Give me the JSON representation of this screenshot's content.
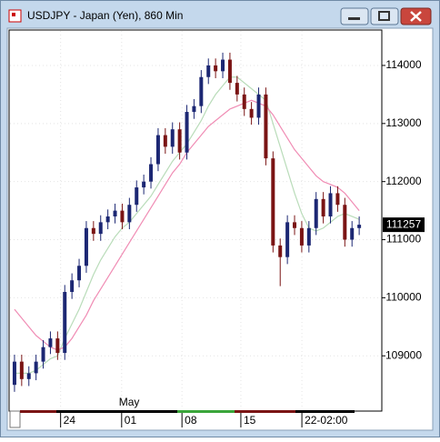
{
  "chart_data": {
    "type": "candlestick",
    "title": "USDJPY - Japan (Yen), 860 Min",
    "open": [
      108500,
      108900,
      108600,
      108700,
      108900,
      109150,
      109300,
      109050,
      110100,
      110300,
      110550,
      111200,
      111100,
      111300,
      111400,
      111500,
      111300,
      111600,
      111900,
      112000,
      112300,
      112800,
      112600,
      112900,
      112500,
      113200,
      113300,
      113800,
      114000,
      113900,
      114100,
      113700,
      113500,
      113250,
      113100,
      113500,
      112400,
      110900,
      110700,
      111300,
      111200,
      110900,
      111200,
      111700,
      111400,
      111800,
      111600,
      111000,
      111200
    ],
    "high": [
      109020,
      109020,
      108820,
      109020,
      109270,
      109420,
      109420,
      110220,
      110420,
      110670,
      111320,
      111320,
      111420,
      111520,
      111620,
      111620,
      111720,
      112020,
      112120,
      112420,
      112920,
      112920,
      113020,
      113020,
      113320,
      113420,
      113920,
      114120,
      114120,
      114220,
      114220,
      113820,
      113620,
      113370,
      113620,
      113620,
      112520,
      111020,
      111420,
      111420,
      111320,
      111320,
      111820,
      111820,
      111920,
      111920,
      111720,
      111320,
      111400
    ],
    "low": [
      108380,
      108480,
      108480,
      108580,
      108780,
      109030,
      108930,
      108930,
      109980,
      110180,
      110430,
      110980,
      110980,
      111180,
      111280,
      111180,
      111180,
      111480,
      111780,
      111880,
      112180,
      112480,
      112480,
      112380,
      112380,
      113080,
      113180,
      113680,
      113780,
      113780,
      113580,
      113380,
      113130,
      112980,
      112980,
      112280,
      110780,
      110200,
      110580,
      111080,
      110780,
      110780,
      111080,
      111280,
      111280,
      111480,
      110880,
      110880,
      111080
    ],
    "close": [
      108900,
      108600,
      108700,
      108900,
      109150,
      109300,
      109050,
      110100,
      110300,
      110550,
      111200,
      111100,
      111300,
      111400,
      111500,
      111300,
      111600,
      111900,
      112000,
      112300,
      112800,
      112600,
      112900,
      112500,
      113200,
      113300,
      113800,
      114000,
      113900,
      114100,
      113700,
      113500,
      113250,
      113100,
      113500,
      112400,
      110900,
      110700,
      111300,
      111200,
      110900,
      111200,
      111700,
      111400,
      111800,
      111600,
      111000,
      111200,
      111257
    ],
    "up_color": "#1c2773",
    "down_color": "#7a1414",
    "moving_averages": [
      {
        "color": "#b9dcb9",
        "values": [
          108700,
          108700,
          108700,
          108750,
          108850,
          108950,
          109000,
          109300,
          109550,
          109800,
          110100,
          110400,
          110650,
          110850,
          111050,
          111200,
          111300,
          111450,
          111600,
          111750,
          111950,
          112150,
          112350,
          112500,
          112650,
          112850,
          113050,
          113300,
          113500,
          113650,
          113800,
          113800,
          113700,
          113600,
          113500,
          113400,
          113000,
          112600,
          112200,
          111800,
          111450,
          111200,
          111150,
          111200,
          111300,
          111400,
          111450,
          111400,
          111350
        ]
      },
      {
        "color": "#f08cb4",
        "values": [
          109800,
          109650,
          109500,
          109350,
          109250,
          109150,
          109100,
          109150,
          109300,
          109500,
          109700,
          109950,
          110150,
          110350,
          110550,
          110750,
          110950,
          111150,
          111350,
          111550,
          111750,
          111950,
          112150,
          112300,
          112500,
          112650,
          112800,
          112950,
          113050,
          113150,
          113250,
          113300,
          113350,
          113400,
          113350,
          113300,
          113150,
          112950,
          112750,
          112550,
          112400,
          112250,
          112100,
          112000,
          111950,
          111900,
          111800,
          111650,
          111500
        ]
      }
    ],
    "xlim": [
      -0.5,
      51.15
    ],
    "xticks": [
      {
        "value": 6.8,
        "label": "24"
      },
      {
        "value": 15.3,
        "label": "01"
      },
      {
        "value": 23.7,
        "label": "08"
      },
      {
        "value": 31.9,
        "label": "15"
      },
      {
        "value": 40.4,
        "label": "22-02:00"
      }
    ],
    "month_label": {
      "value": 15.8,
      "label": "May"
    },
    "ylim": [
      108080,
      114610
    ],
    "yticks": [
      109000,
      110000,
      111000,
      112000,
      113000,
      114000
    ],
    "grid": true
  }
}
